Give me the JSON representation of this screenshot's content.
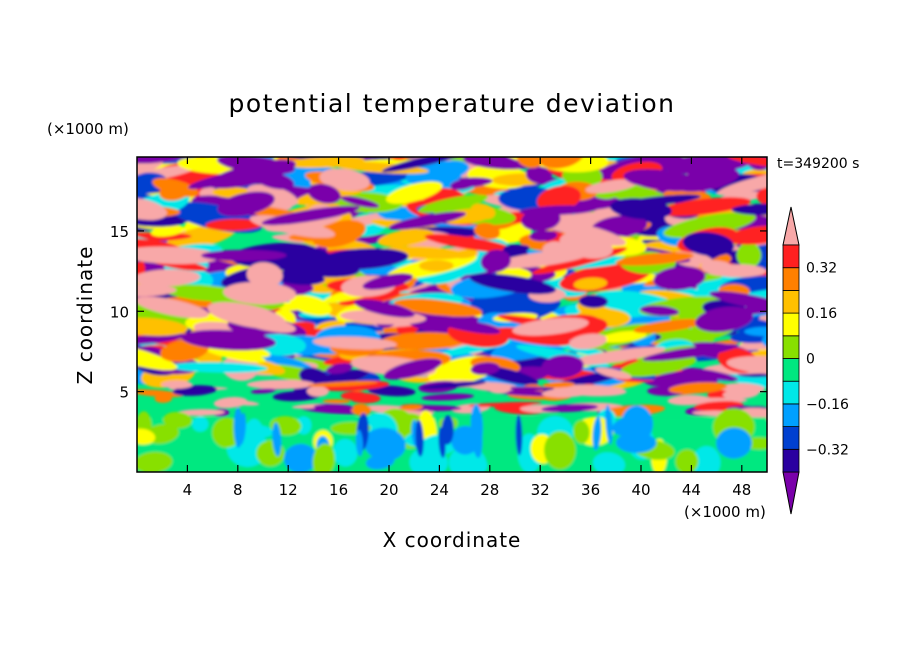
{
  "chart_data": {
    "type": "heatmap",
    "title": "potential temperature deviation",
    "xlabel": "X coordinate",
    "ylabel": "Z coordinate",
    "x_unit": "(×1000 m)",
    "y_unit": "(×1000 m)",
    "time_label": "t=349200 s",
    "xlim": [
      0,
      50
    ],
    "ylim": [
      0,
      19.6
    ],
    "x_ticks": [
      4,
      8,
      12,
      16,
      20,
      24,
      28,
      32,
      36,
      40,
      44,
      48
    ],
    "y_ticks": [
      5,
      10,
      15
    ],
    "colorbar": {
      "levels": [
        -0.4,
        -0.32,
        -0.24,
        -0.16,
        -0.08,
        0,
        0.08,
        0.16,
        0.24,
        0.32,
        0.4
      ],
      "labeled_levels": [
        {
          "value": 0.32,
          "label": "0.32"
        },
        {
          "value": 0.16,
          "label": "0.16"
        },
        {
          "value": 0,
          "label": "0"
        },
        {
          "value": -0.16,
          "label": "−0.16"
        },
        {
          "value": -0.32,
          "label": "−0.32"
        }
      ],
      "colors": [
        "#7a00aa",
        "#2a00a0",
        "#0040d0",
        "#00a0ff",
        "#00e8e8",
        "#00e880",
        "#88e000",
        "#ffff00",
        "#ffc000",
        "#ff8000",
        "#ff2020",
        "#f8a8a8"
      ]
    }
  }
}
